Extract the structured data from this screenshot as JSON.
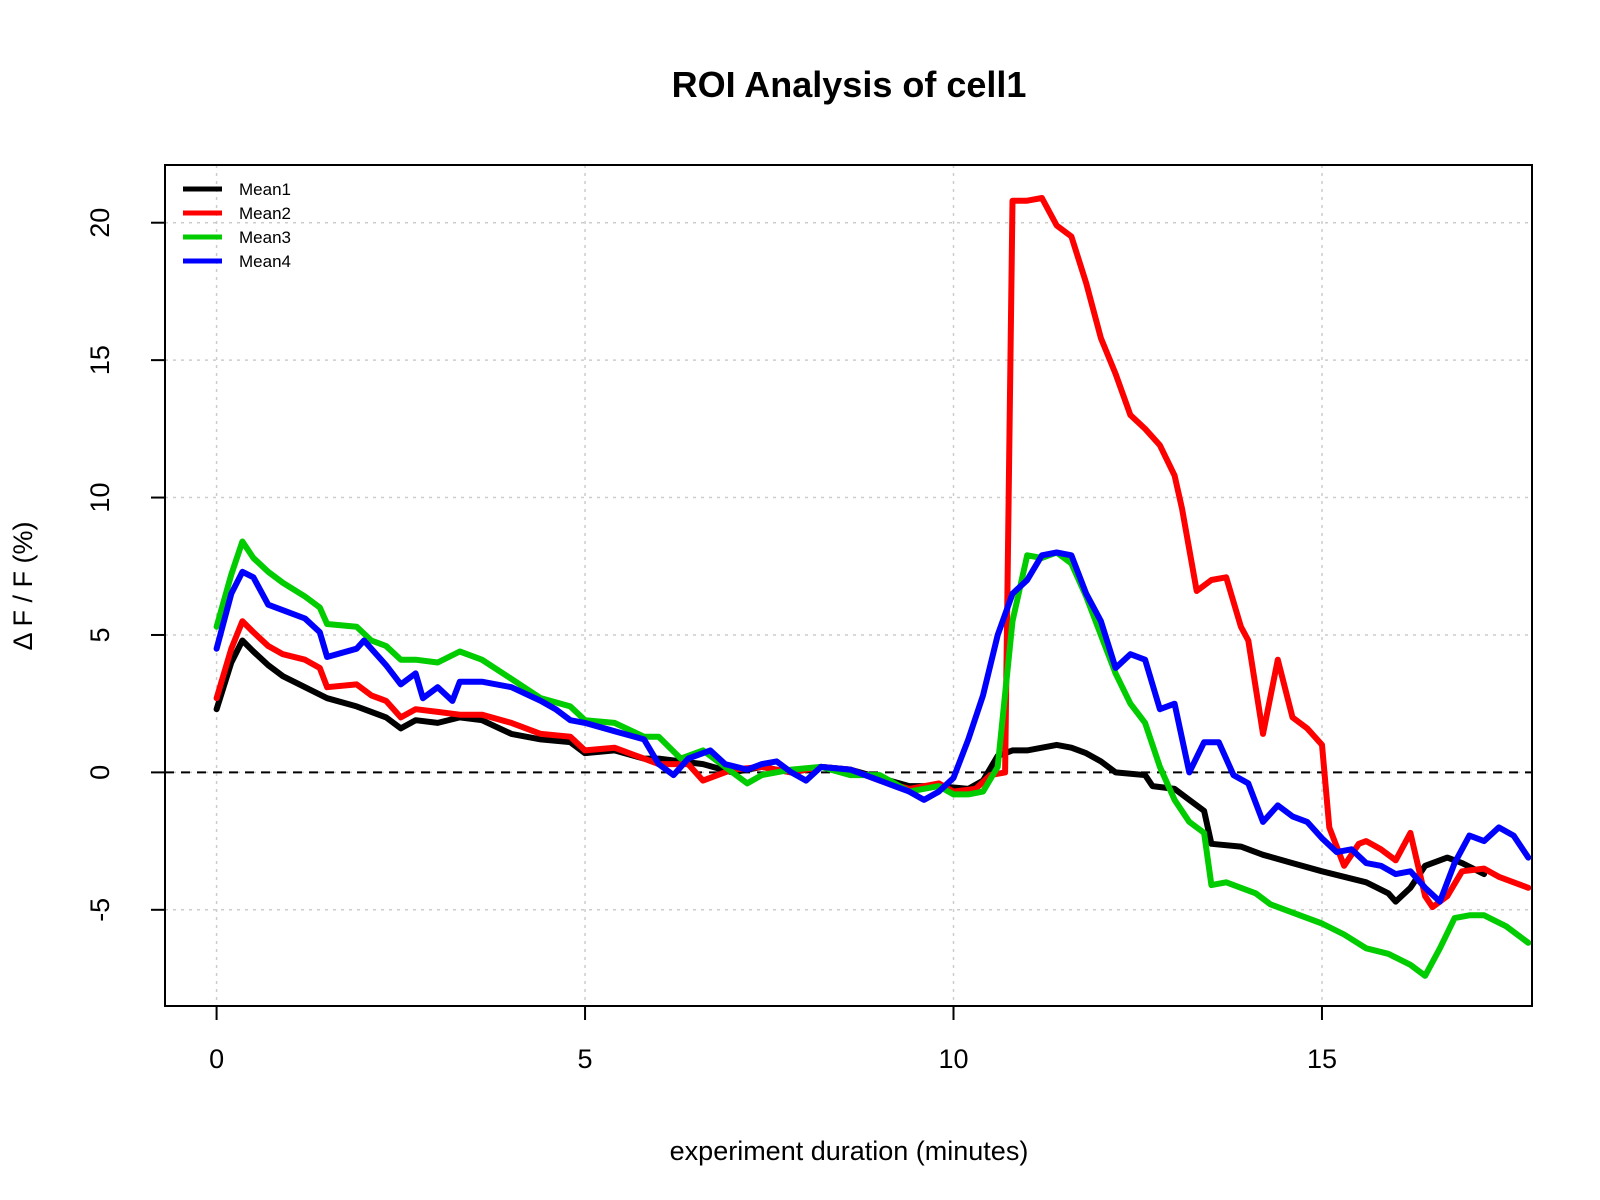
{
  "chart_data": {
    "type": "line",
    "title": "ROI Analysis of cell1",
    "xlabel": "experiment duration (minutes)",
    "ylabel": "Δ  F / F (%)",
    "xlim": [
      -0.7,
      17.85
    ],
    "ylim": [
      -8.5,
      22.1
    ],
    "xticks": [
      "0",
      "5",
      "10",
      "15"
    ],
    "xtick_values": [
      0,
      5,
      10,
      15
    ],
    "yticks": [
      "-5",
      "0",
      "5",
      "10",
      "15",
      "20"
    ],
    "ytick_values": [
      -5,
      0,
      5,
      10,
      15,
      20
    ],
    "grid": true,
    "reference_line": 0,
    "legend_position": "top-left",
    "series": [
      {
        "name": "Mean1",
        "color": "#000000",
        "points": [
          [
            0,
            2.3
          ],
          [
            0.2,
            4.0
          ],
          [
            0.35,
            4.8
          ],
          [
            0.5,
            4.4
          ],
          [
            0.7,
            3.9
          ],
          [
            0.9,
            3.5
          ],
          [
            1.2,
            3.1
          ],
          [
            1.5,
            2.7
          ],
          [
            1.9,
            2.4
          ],
          [
            2.3,
            2.0
          ],
          [
            2.5,
            1.6
          ],
          [
            2.7,
            1.9
          ],
          [
            3.0,
            1.8
          ],
          [
            3.3,
            2.0
          ],
          [
            3.6,
            1.9
          ],
          [
            4.0,
            1.4
          ],
          [
            4.4,
            1.2
          ],
          [
            4.8,
            1.1
          ],
          [
            5.0,
            0.7
          ],
          [
            5.4,
            0.8
          ],
          [
            5.8,
            0.5
          ],
          [
            6.0,
            0.5
          ],
          [
            6.3,
            0.4
          ],
          [
            6.6,
            0.3
          ],
          [
            7.0,
            0.0
          ],
          [
            7.4,
            0.2
          ],
          [
            7.8,
            0.0
          ],
          [
            8.2,
            0.2
          ],
          [
            8.6,
            0.1
          ],
          [
            9.0,
            -0.2
          ],
          [
            9.4,
            -0.5
          ],
          [
            9.8,
            -0.5
          ],
          [
            10.2,
            -0.6
          ],
          [
            10.4,
            -0.3
          ],
          [
            10.6,
            0.6
          ],
          [
            10.8,
            0.8
          ],
          [
            11.0,
            0.8
          ],
          [
            11.2,
            0.9
          ],
          [
            11.4,
            1.0
          ],
          [
            11.6,
            0.9
          ],
          [
            11.8,
            0.7
          ],
          [
            12.0,
            0.4
          ],
          [
            12.2,
            0.0
          ],
          [
            12.6,
            -0.1
          ],
          [
            12.7,
            -0.5
          ],
          [
            13.0,
            -0.6
          ],
          [
            13.2,
            -1.0
          ],
          [
            13.4,
            -1.4
          ],
          [
            13.5,
            -2.6
          ],
          [
            13.9,
            -2.7
          ],
          [
            14.2,
            -3.0
          ],
          [
            14.6,
            -3.3
          ],
          [
            15.0,
            -3.6
          ],
          [
            15.3,
            -3.8
          ],
          [
            15.6,
            -4.0
          ],
          [
            15.9,
            -4.4
          ],
          [
            16.0,
            -4.7
          ],
          [
            16.2,
            -4.2
          ],
          [
            16.4,
            -3.4
          ],
          [
            16.7,
            -3.1
          ],
          [
            16.9,
            -3.3
          ],
          [
            17.2,
            -3.7
          ]
        ]
      },
      {
        "name": "Mean2",
        "color": "#ff0000",
        "points": [
          [
            0,
            2.7
          ],
          [
            0.2,
            4.5
          ],
          [
            0.35,
            5.5
          ],
          [
            0.5,
            5.1
          ],
          [
            0.7,
            4.6
          ],
          [
            0.9,
            4.3
          ],
          [
            1.2,
            4.1
          ],
          [
            1.4,
            3.8
          ],
          [
            1.5,
            3.1
          ],
          [
            1.9,
            3.2
          ],
          [
            2.1,
            2.8
          ],
          [
            2.3,
            2.6
          ],
          [
            2.5,
            2.0
          ],
          [
            2.7,
            2.3
          ],
          [
            3.0,
            2.2
          ],
          [
            3.3,
            2.1
          ],
          [
            3.6,
            2.1
          ],
          [
            4.0,
            1.8
          ],
          [
            4.4,
            1.4
          ],
          [
            4.8,
            1.3
          ],
          [
            5.0,
            0.8
          ],
          [
            5.4,
            0.9
          ],
          [
            5.8,
            0.5
          ],
          [
            6.0,
            0.3
          ],
          [
            6.4,
            0.3
          ],
          [
            6.6,
            -0.3
          ],
          [
            7.0,
            0.1
          ],
          [
            7.4,
            0.2
          ],
          [
            7.8,
            0.0
          ],
          [
            8.2,
            0.2
          ],
          [
            8.6,
            0.1
          ],
          [
            9.0,
            -0.3
          ],
          [
            9.4,
            -0.6
          ],
          [
            9.8,
            -0.4
          ],
          [
            10.0,
            -0.7
          ],
          [
            10.3,
            -0.6
          ],
          [
            10.5,
            -0.1
          ],
          [
            10.7,
            0.0
          ],
          [
            10.8,
            20.8
          ],
          [
            11.0,
            20.8
          ],
          [
            11.2,
            20.9
          ],
          [
            11.4,
            19.9
          ],
          [
            11.6,
            19.5
          ],
          [
            11.8,
            17.8
          ],
          [
            12.0,
            15.8
          ],
          [
            12.2,
            14.5
          ],
          [
            12.4,
            13.0
          ],
          [
            12.6,
            12.5
          ],
          [
            12.8,
            11.9
          ],
          [
            13.0,
            10.8
          ],
          [
            13.1,
            9.6
          ],
          [
            13.3,
            6.6
          ],
          [
            13.5,
            7.0
          ],
          [
            13.7,
            7.1
          ],
          [
            13.9,
            5.3
          ],
          [
            14.0,
            4.8
          ],
          [
            14.2,
            1.4
          ],
          [
            14.4,
            4.1
          ],
          [
            14.6,
            2.0
          ],
          [
            14.8,
            1.6
          ],
          [
            15.0,
            1.0
          ],
          [
            15.1,
            -2.0
          ],
          [
            15.3,
            -3.4
          ],
          [
            15.5,
            -2.6
          ],
          [
            15.6,
            -2.5
          ],
          [
            15.8,
            -2.8
          ],
          [
            16.0,
            -3.2
          ],
          [
            16.2,
            -2.2
          ],
          [
            16.4,
            -4.5
          ],
          [
            16.5,
            -4.9
          ],
          [
            16.7,
            -4.5
          ],
          [
            16.9,
            -3.6
          ],
          [
            17.2,
            -3.5
          ],
          [
            17.4,
            -3.8
          ],
          [
            17.6,
            -4.0
          ],
          [
            17.8,
            -4.2
          ]
        ]
      },
      {
        "name": "Mean3",
        "color": "#00cc00",
        "points": [
          [
            0,
            5.3
          ],
          [
            0.2,
            7.2
          ],
          [
            0.35,
            8.4
          ],
          [
            0.5,
            7.8
          ],
          [
            0.7,
            7.3
          ],
          [
            0.9,
            6.9
          ],
          [
            1.2,
            6.4
          ],
          [
            1.4,
            6.0
          ],
          [
            1.5,
            5.4
          ],
          [
            1.9,
            5.3
          ],
          [
            2.1,
            4.8
          ],
          [
            2.3,
            4.6
          ],
          [
            2.5,
            4.1
          ],
          [
            2.7,
            4.1
          ],
          [
            3.0,
            4.0
          ],
          [
            3.3,
            4.4
          ],
          [
            3.6,
            4.1
          ],
          [
            4.0,
            3.4
          ],
          [
            4.4,
            2.7
          ],
          [
            4.8,
            2.4
          ],
          [
            5.0,
            1.9
          ],
          [
            5.4,
            1.8
          ],
          [
            5.8,
            1.3
          ],
          [
            6.0,
            1.3
          ],
          [
            6.3,
            0.5
          ],
          [
            6.6,
            0.8
          ],
          [
            7.0,
            0.0
          ],
          [
            7.2,
            -0.4
          ],
          [
            7.4,
            -0.1
          ],
          [
            7.8,
            0.1
          ],
          [
            8.2,
            0.2
          ],
          [
            8.6,
            -0.1
          ],
          [
            9.0,
            -0.1
          ],
          [
            9.4,
            -0.7
          ],
          [
            9.8,
            -0.5
          ],
          [
            10.0,
            -0.8
          ],
          [
            10.2,
            -0.8
          ],
          [
            10.4,
            -0.7
          ],
          [
            10.6,
            0.2
          ],
          [
            10.8,
            5.5
          ],
          [
            11.0,
            7.9
          ],
          [
            11.2,
            7.8
          ],
          [
            11.4,
            8.0
          ],
          [
            11.6,
            7.6
          ],
          [
            11.8,
            6.4
          ],
          [
            12.0,
            5.0
          ],
          [
            12.2,
            3.6
          ],
          [
            12.4,
            2.5
          ],
          [
            12.6,
            1.8
          ],
          [
            12.8,
            0.2
          ],
          [
            13.0,
            -1.0
          ],
          [
            13.2,
            -1.8
          ],
          [
            13.4,
            -2.2
          ],
          [
            13.5,
            -4.1
          ],
          [
            13.7,
            -4.0
          ],
          [
            13.9,
            -4.2
          ],
          [
            14.1,
            -4.4
          ],
          [
            14.3,
            -4.8
          ],
          [
            14.6,
            -5.1
          ],
          [
            15.0,
            -5.5
          ],
          [
            15.3,
            -5.9
          ],
          [
            15.6,
            -6.4
          ],
          [
            15.9,
            -6.6
          ],
          [
            16.2,
            -7.0
          ],
          [
            16.4,
            -7.4
          ],
          [
            16.6,
            -6.4
          ],
          [
            16.8,
            -5.3
          ],
          [
            17.0,
            -5.2
          ],
          [
            17.2,
            -5.2
          ],
          [
            17.5,
            -5.6
          ],
          [
            17.8,
            -6.2
          ]
        ]
      },
      {
        "name": "Mean4",
        "color": "#0000ff",
        "points": [
          [
            0,
            4.5
          ],
          [
            0.2,
            6.5
          ],
          [
            0.35,
            7.3
          ],
          [
            0.5,
            7.1
          ],
          [
            0.7,
            6.1
          ],
          [
            0.9,
            5.9
          ],
          [
            1.2,
            5.6
          ],
          [
            1.4,
            5.1
          ],
          [
            1.5,
            4.2
          ],
          [
            1.9,
            4.5
          ],
          [
            2.0,
            4.8
          ],
          [
            2.3,
            3.9
          ],
          [
            2.5,
            3.2
          ],
          [
            2.7,
            3.6
          ],
          [
            2.8,
            2.7
          ],
          [
            3.0,
            3.1
          ],
          [
            3.2,
            2.6
          ],
          [
            3.3,
            3.3
          ],
          [
            3.6,
            3.3
          ],
          [
            4.0,
            3.1
          ],
          [
            4.4,
            2.6
          ],
          [
            4.6,
            2.3
          ],
          [
            4.8,
            1.9
          ],
          [
            5.0,
            1.8
          ],
          [
            5.4,
            1.5
          ],
          [
            5.8,
            1.2
          ],
          [
            6.0,
            0.3
          ],
          [
            6.2,
            -0.1
          ],
          [
            6.4,
            0.5
          ],
          [
            6.7,
            0.8
          ],
          [
            6.9,
            0.3
          ],
          [
            7.2,
            0.1
          ],
          [
            7.4,
            0.3
          ],
          [
            7.6,
            0.4
          ],
          [
            7.8,
            0.0
          ],
          [
            8.0,
            -0.3
          ],
          [
            8.2,
            0.2
          ],
          [
            8.6,
            0.1
          ],
          [
            9.0,
            -0.3
          ],
          [
            9.4,
            -0.7
          ],
          [
            9.6,
            -1.0
          ],
          [
            9.8,
            -0.7
          ],
          [
            10.0,
            -0.2
          ],
          [
            10.2,
            1.2
          ],
          [
            10.4,
            2.8
          ],
          [
            10.6,
            5.0
          ],
          [
            10.8,
            6.5
          ],
          [
            11.0,
            7.0
          ],
          [
            11.2,
            7.9
          ],
          [
            11.4,
            8.0
          ],
          [
            11.6,
            7.9
          ],
          [
            11.8,
            6.5
          ],
          [
            12.0,
            5.5
          ],
          [
            12.2,
            3.8
          ],
          [
            12.4,
            4.3
          ],
          [
            12.6,
            4.1
          ],
          [
            12.8,
            2.3
          ],
          [
            13.0,
            2.5
          ],
          [
            13.2,
            0.0
          ],
          [
            13.4,
            1.1
          ],
          [
            13.6,
            1.1
          ],
          [
            13.8,
            -0.1
          ],
          [
            14.0,
            -0.4
          ],
          [
            14.2,
            -1.8
          ],
          [
            14.4,
            -1.2
          ],
          [
            14.6,
            -1.6
          ],
          [
            14.8,
            -1.8
          ],
          [
            15.0,
            -2.4
          ],
          [
            15.2,
            -2.9
          ],
          [
            15.4,
            -2.8
          ],
          [
            15.6,
            -3.3
          ],
          [
            15.8,
            -3.4
          ],
          [
            16.0,
            -3.7
          ],
          [
            16.2,
            -3.6
          ],
          [
            16.4,
            -4.2
          ],
          [
            16.6,
            -4.7
          ],
          [
            16.8,
            -3.3
          ],
          [
            17.0,
            -2.3
          ],
          [
            17.2,
            -2.5
          ],
          [
            17.4,
            -2.0
          ],
          [
            17.6,
            -2.3
          ],
          [
            17.8,
            -3.1
          ]
        ]
      }
    ]
  }
}
